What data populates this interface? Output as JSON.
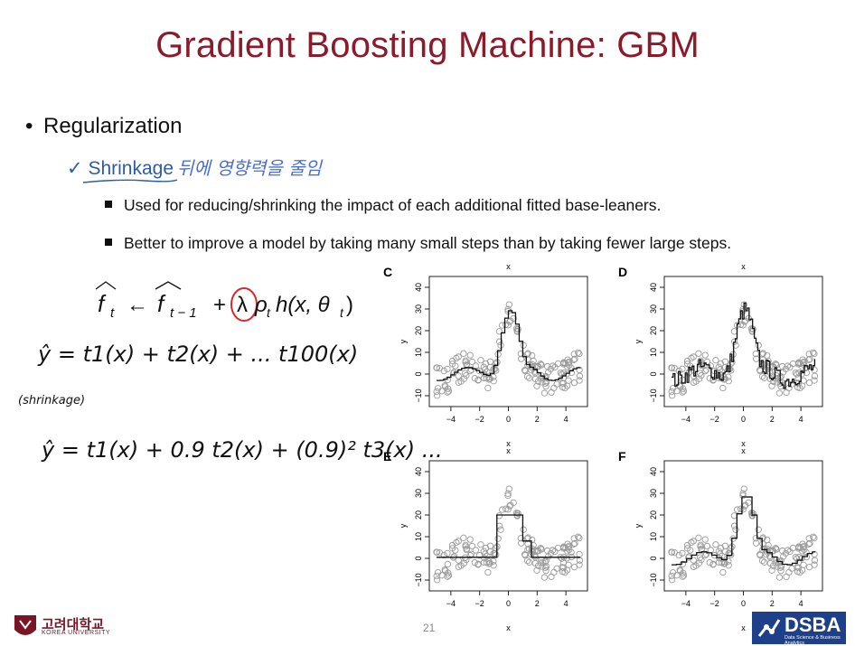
{
  "slide": {
    "title": "Gradient Boosting Machine: GBM",
    "bullet": "Regularization",
    "sub_bullet": "Shrinkage",
    "handwritten_note": "뒤에 영향력을 줄임",
    "points": [
      "Used for reducing/shrinking the impact of each additional fitted base-leaners.",
      "Better to improve a model by taking many small steps than by taking fewer large steps."
    ],
    "formula": "f̂t ← f̂t−1 + λρth(x, θt)",
    "handwritten": [
      "ŷ = t1(x) + t2(x) + ... t100(x)",
      "(shrinkage)",
      "ŷ = t1(x) + 0.9 t2(x) + (0.9)² t3(x) ..."
    ],
    "page_number": "21",
    "university": "고려대학교",
    "university_en": "KOREA UNIVERSITY",
    "brand": "DSBA",
    "brand_sub": "Data Science & Business Analytics"
  },
  "colors": {
    "title": "#8b1a2b",
    "shrinkage": "#2e5aa8",
    "circle": "#d9262b",
    "brand": "#1e3f8a"
  },
  "chart_data": [
    {
      "type": "scatter",
      "panel": "C",
      "title": "x",
      "xlabel": "x",
      "ylabel": "y",
      "xlim": [
        -5.5,
        5.5
      ],
      "ylim": [
        -15,
        45
      ],
      "x_ticks": [
        "−4",
        "−2",
        "0",
        "2",
        "4"
      ],
      "y_ticks": [
        "−10",
        "0",
        "10",
        "20",
        "30",
        "40"
      ],
      "fit_style": "smooth"
    },
    {
      "type": "scatter",
      "panel": "D",
      "title": "x",
      "xlabel": "x",
      "ylabel": "y",
      "xlim": [
        -5.5,
        5.5
      ],
      "ylim": [
        -15,
        45
      ],
      "x_ticks": [
        "−4",
        "−2",
        "0",
        "2",
        "4"
      ],
      "y_ticks": [
        "−10",
        "0",
        "10",
        "20",
        "30",
        "40"
      ],
      "fit_style": "overfit"
    },
    {
      "type": "scatter",
      "panel": "E",
      "title": "x",
      "xlabel": "x",
      "ylabel": "y",
      "xlim": [
        -5.5,
        5.5
      ],
      "ylim": [
        -15,
        45
      ],
      "x_ticks": [
        "−4",
        "−2",
        "0",
        "2",
        "4"
      ],
      "y_ticks": [
        "−10",
        "0",
        "10",
        "20",
        "30",
        "40"
      ],
      "fit_style": "coarse"
    },
    {
      "type": "scatter",
      "panel": "F",
      "title": "x",
      "xlabel": "x",
      "ylabel": "y",
      "xlim": [
        -5.5,
        5.5
      ],
      "ylim": [
        -15,
        45
      ],
      "x_ticks": [
        "−4",
        "−2",
        "0",
        "2",
        "4"
      ],
      "y_ticks": [
        "−10",
        "0",
        "10",
        "20",
        "30",
        "40"
      ],
      "fit_style": "medium"
    }
  ]
}
